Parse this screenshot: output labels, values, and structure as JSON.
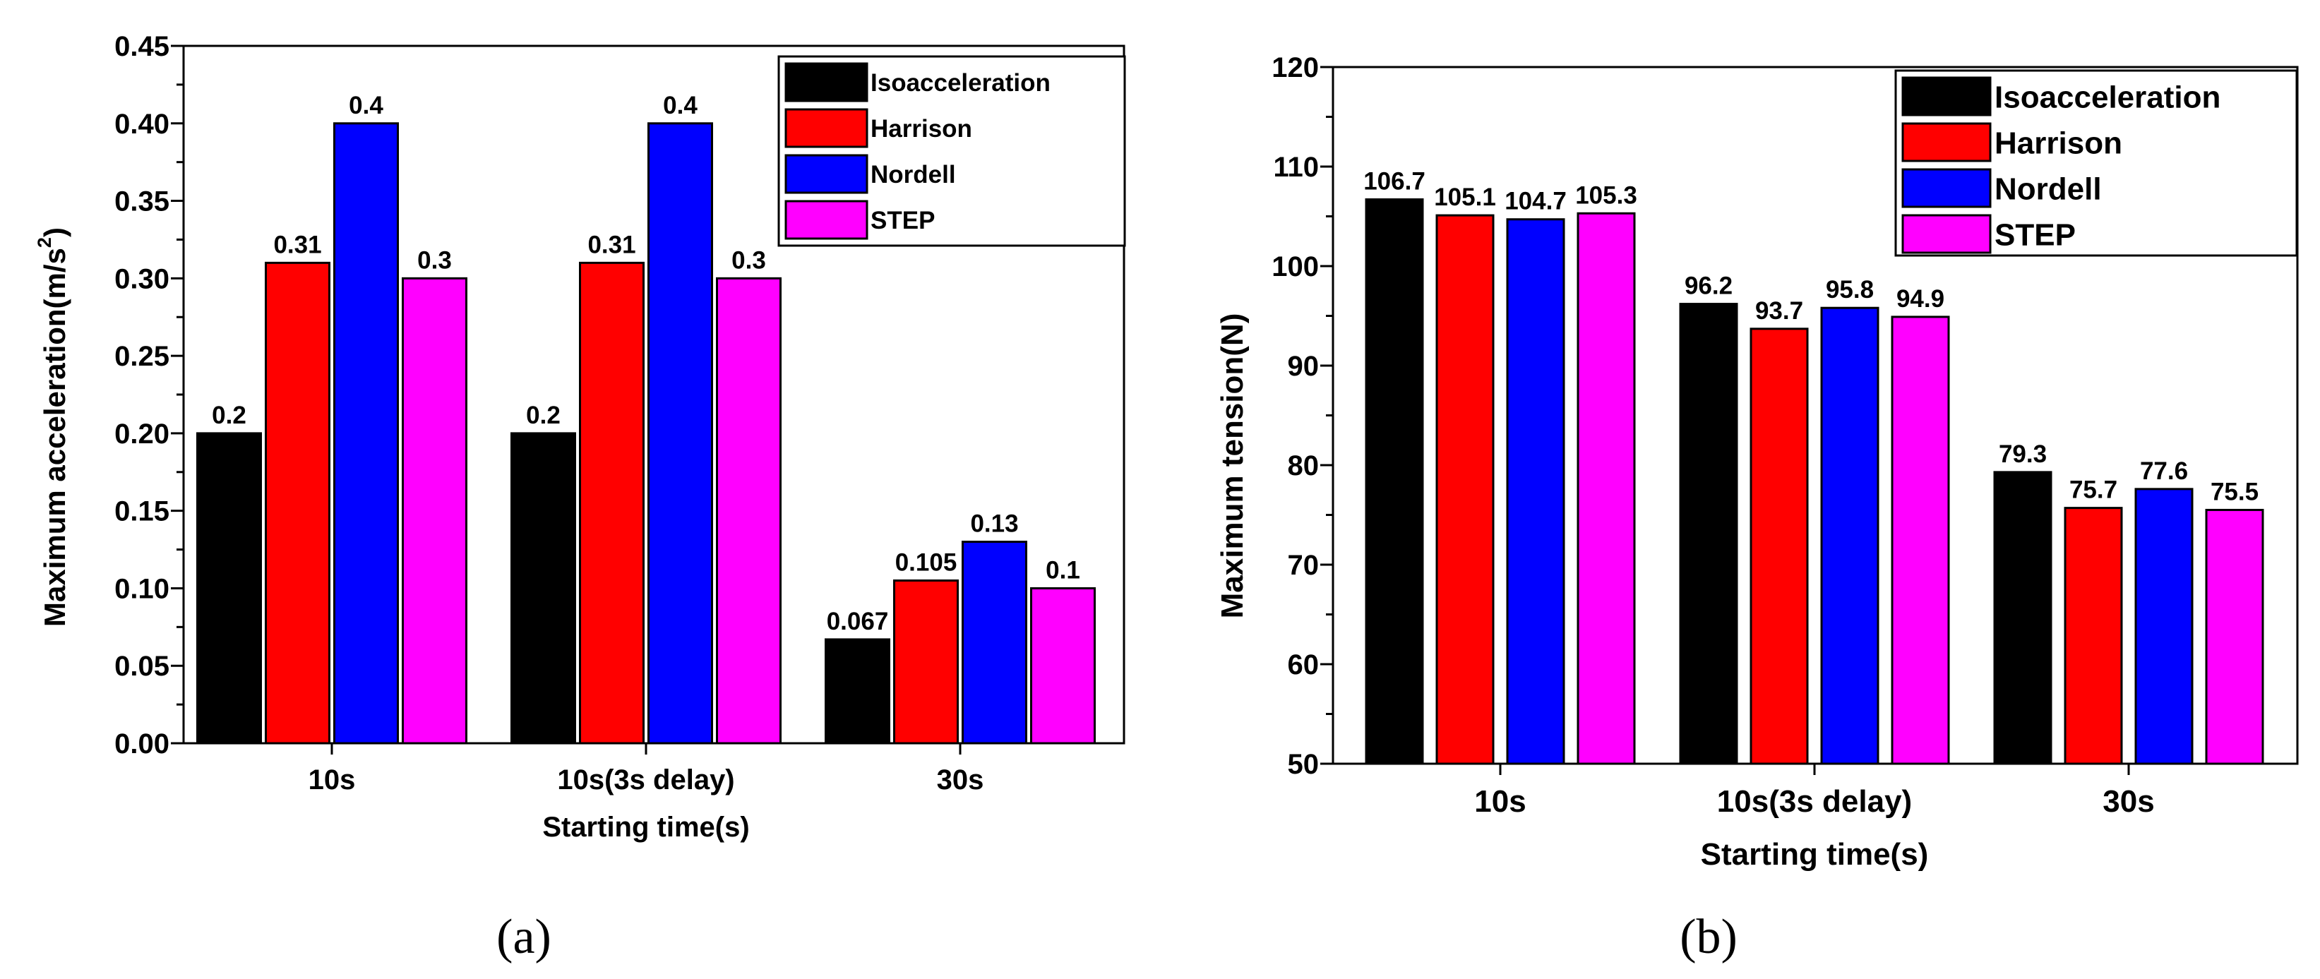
{
  "colors": {
    "Isoacceleration": "#000000",
    "Harrison": "#ff0000",
    "Nordell": "#0000ff",
    "STEP": "#ff00ff"
  },
  "chart_data": [
    {
      "type": "bar",
      "panel_label": "(a)",
      "categories": [
        "10s",
        "10s(3s delay)",
        "30s"
      ],
      "series": [
        {
          "name": "Isoacceleration",
          "values": [
            0.2,
            0.2,
            0.067
          ],
          "labels": [
            "0.2",
            "0.2",
            "0.067"
          ]
        },
        {
          "name": "Harrison",
          "values": [
            0.31,
            0.31,
            0.105
          ],
          "labels": [
            "0.31",
            "0.31",
            "0.105"
          ]
        },
        {
          "name": "Nordell",
          "values": [
            0.4,
            0.4,
            0.13
          ],
          "labels": [
            "0.4",
            "0.4",
            "0.13"
          ]
        },
        {
          "name": "STEP",
          "values": [
            0.3,
            0.3,
            0.1
          ],
          "labels": [
            "0.3",
            "0.3",
            "0.1"
          ]
        }
      ],
      "xlabel": "Starting time(s)",
      "ylabel_main": "Maximum acceleration(m/s",
      "ylabel_sup": "2",
      "ylabel_close": ")",
      "ylim": [
        0,
        0.45
      ],
      "yticks": [
        "0.00",
        "0.05",
        "0.10",
        "0.15",
        "0.20",
        "0.25",
        "0.30",
        "0.35",
        "0.40",
        "0.45"
      ],
      "legend_position": "top-right"
    },
    {
      "type": "bar",
      "panel_label": "(b)",
      "categories": [
        "10s",
        "10s(3s delay)",
        "30s"
      ],
      "series": [
        {
          "name": "Isoacceleration",
          "values": [
            106.7,
            96.2,
            79.3
          ],
          "labels": [
            "106.7",
            "96.2",
            "79.3"
          ]
        },
        {
          "name": "Harrison",
          "values": [
            105.1,
            93.7,
            75.7
          ],
          "labels": [
            "105.1",
            "93.7",
            "75.7"
          ]
        },
        {
          "name": "Nordell",
          "values": [
            104.7,
            95.8,
            77.6
          ],
          "labels": [
            "104.7",
            "95.8",
            "77.6"
          ]
        },
        {
          "name": "STEP",
          "values": [
            105.3,
            94.9,
            75.5
          ],
          "labels": [
            "105.3",
            "94.9",
            "75.5"
          ]
        }
      ],
      "xlabel": "Starting time(s)",
      "ylabel": "Maximum tension(N)",
      "ylim": [
        50,
        120
      ],
      "yticks": [
        "50",
        "60",
        "70",
        "80",
        "90",
        "100",
        "110",
        "120"
      ],
      "legend_position": "top-right"
    }
  ]
}
